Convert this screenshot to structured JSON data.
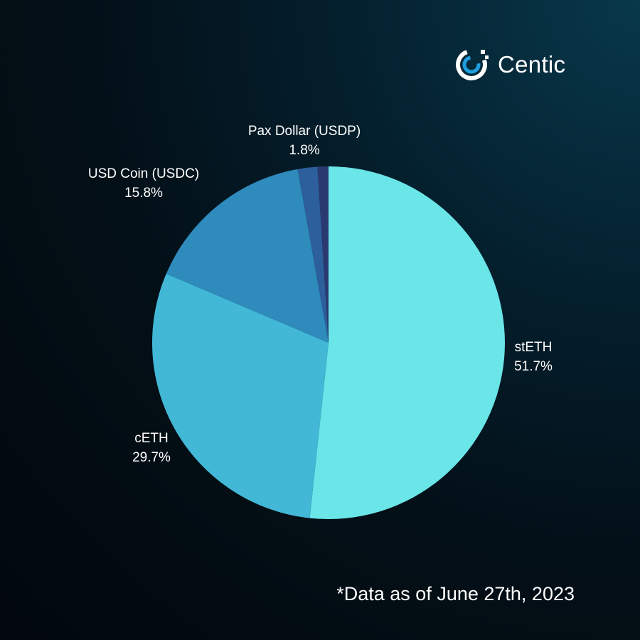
{
  "brand": {
    "name": "Centic",
    "icon": "centic-logo-icon",
    "colors": {
      "ring": "#ffffff",
      "arc": "#1ea0e0"
    }
  },
  "footnote": "*Data as of June 27th, 2023",
  "chart_data": {
    "type": "pie",
    "title": "",
    "start_angle_deg": 0,
    "direction": "clockwise",
    "slices": [
      {
        "label": "stETH",
        "value": 51.7,
        "display": "51.7%",
        "color": "#6ae5e8"
      },
      {
        "label": "cETH",
        "value": 29.7,
        "display": "29.7%",
        "color": "#42b8d6"
      },
      {
        "label": "USD Coin (USDC)",
        "value": 15.8,
        "display": "15.8%",
        "color": "#2e8bbc"
      },
      {
        "label": "Pax Dollar (USDP)",
        "value": 1.8,
        "display": "1.8%",
        "color": "#2d5f9c"
      },
      {
        "label": "",
        "value": 1.0,
        "display": "",
        "color": "#2a3a70"
      }
    ]
  }
}
